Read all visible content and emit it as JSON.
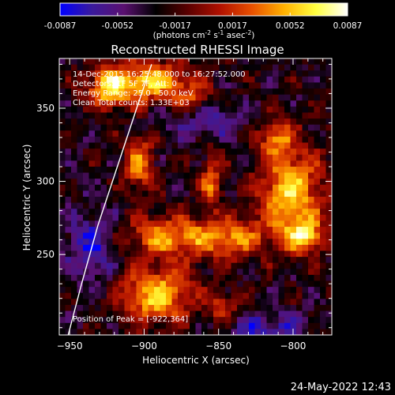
{
  "colorbar": {
    "ticks": [
      "-0.0087",
      "-0.0052",
      "-0.0017",
      "0.0017",
      "0.0052",
      "0.0087"
    ],
    "unit_parts": [
      "(photons cm",
      "-2",
      " s",
      "-1",
      " asec",
      "-2",
      ")"
    ],
    "colors": [
      "#0000ff",
      "#3a1a9c",
      "#5a1070",
      "#000000",
      "#5a0000",
      "#b01000",
      "#e85000",
      "#ffb000",
      "#ffff40",
      "#ffffff"
    ]
  },
  "chart_data": {
    "type": "heatmap",
    "title": "Reconstructed RHESSI Image",
    "xlabel": "Heliocentric X (arcsec)",
    "ylabel": "Heliocentric Y (arcsec)",
    "xlim": [
      -957,
      -774
    ],
    "ylim": [
      195,
      384
    ],
    "xticks": [
      -950,
      -900,
      -850,
      -800
    ],
    "yticks": [
      250,
      300,
      350
    ],
    "value_range": [
      -0.0087,
      0.0087
    ],
    "limb": [
      [
        -951,
        195
      ],
      [
        -942,
        230
      ],
      [
        -931,
        270
      ],
      [
        -918,
        310
      ],
      [
        -905,
        350
      ],
      [
        -895,
        380
      ]
    ],
    "blobs": [
      {
        "x": -900,
        "y": 368,
        "sx": 20,
        "sy": 10,
        "amp": 0.0087
      },
      {
        "x": -925,
        "y": 362,
        "sx": 9,
        "sy": 9,
        "amp": 0.006
      },
      {
        "x": -903,
        "y": 312,
        "sx": 7,
        "sy": 13,
        "amp": 0.0068
      },
      {
        "x": -855,
        "y": 300,
        "sx": 5,
        "sy": 13,
        "amp": 0.006
      },
      {
        "x": -802,
        "y": 292,
        "sx": 15,
        "sy": 22,
        "amp": 0.0087
      },
      {
        "x": -792,
        "y": 262,
        "sx": 9,
        "sy": 8,
        "amp": 0.0075
      },
      {
        "x": -840,
        "y": 261,
        "sx": 15,
        "sy": 9,
        "amp": 0.006
      },
      {
        "x": -812,
        "y": 330,
        "sx": 8,
        "sy": 8,
        "amp": 0.0055
      },
      {
        "x": -882,
        "y": 262,
        "sx": 22,
        "sy": 10,
        "amp": 0.007
      },
      {
        "x": -892,
        "y": 222,
        "sx": 17,
        "sy": 13,
        "amp": 0.0087
      },
      {
        "x": -868,
        "y": 355,
        "sx": 9,
        "sy": 9,
        "amp": 0.0045
      },
      {
        "x": -847,
        "y": 213,
        "sx": 8,
        "sy": 8,
        "amp": 0.0045
      },
      {
        "x": -860,
        "y": 342,
        "sx": 20,
        "sy": 8,
        "amp": -0.004
      },
      {
        "x": -935,
        "y": 255,
        "sx": 12,
        "sy": 18,
        "amp": -0.0045
      },
      {
        "x": -820,
        "y": 200,
        "sx": 20,
        "sy": 8,
        "amp": -0.004
      }
    ]
  },
  "annotations": {
    "time_range": "14-Dec-2015 16:25:48.000 to 16:27:52.000",
    "detectors": "Detectors: 1F 5F 7F, Att: 0",
    "energy": "Energy Range: 25.0 - 50.0 keV",
    "clean": "Clean  Total counts: 1.33E+03",
    "peak": "Position of Peak = [-922,364]"
  },
  "footer_date": "24-May-2022 12:43"
}
